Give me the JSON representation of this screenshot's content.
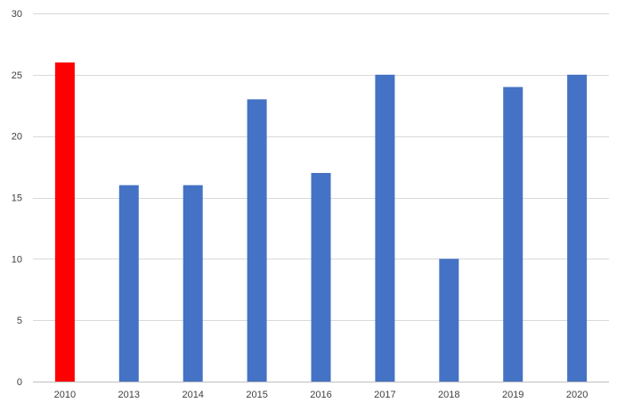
{
  "chart_data": {
    "type": "bar",
    "categories": [
      "2010",
      "2013",
      "2014",
      "2015",
      "2016",
      "2017",
      "2018",
      "2019",
      "2020"
    ],
    "values": [
      26,
      16,
      16,
      23,
      17,
      25,
      10,
      24,
      25
    ],
    "bar_colors": [
      "#ff0000",
      "#4472c4",
      "#4472c4",
      "#4472c4",
      "#4472c4",
      "#4472c4",
      "#4472c4",
      "#4472c4",
      "#4472c4"
    ],
    "ylim": [
      0,
      30
    ],
    "yticks": [
      "0",
      "5",
      "10",
      "15",
      "20",
      "25",
      "30"
    ],
    "grid": true,
    "legend": "none",
    "colors": {
      "highlight": "#ff0000",
      "default": "#4472c4",
      "grid": "#d9d9d9",
      "axis": "#bfbfbf",
      "tick_text": "#404040"
    }
  }
}
